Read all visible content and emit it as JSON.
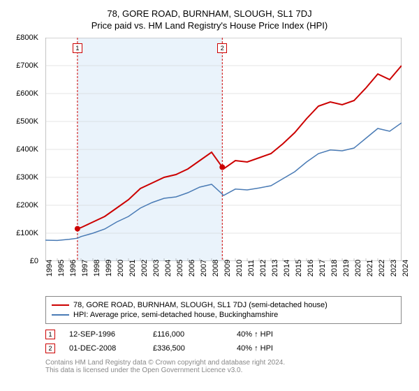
{
  "chart": {
    "title": "78, GORE ROAD, BURNHAM, SLOUGH, SL1 7DJ",
    "subtitle": "Price paid vs. HM Land Registry's House Price Index (HPI)",
    "type": "line",
    "background_color": "#ffffff",
    "highlight_band_color": "#eaf3fb",
    "grid_color": "#cccccc",
    "ylim": [
      0,
      800000
    ],
    "ytick_step": 100000,
    "y_tick_labels": [
      "£0",
      "£100K",
      "£200K",
      "£300K",
      "£400K",
      "£500K",
      "£600K",
      "£700K",
      "£800K"
    ],
    "xlim": [
      1994,
      2024
    ],
    "x_tick_labels": [
      "1994",
      "1995",
      "1996",
      "1997",
      "1998",
      "1999",
      "2000",
      "2001",
      "2002",
      "2003",
      "2004",
      "2005",
      "2006",
      "2007",
      "2008",
      "2009",
      "2010",
      "2011",
      "2012",
      "2013",
      "2014",
      "2015",
      "2016",
      "2017",
      "2018",
      "2019",
      "2020",
      "2021",
      "2022",
      "2023",
      "2024"
    ],
    "label_fontsize": 11,
    "highlight_band": {
      "start": 1996.7,
      "end": 2008.9
    },
    "series": [
      {
        "name": "property",
        "color": "#cc0000",
        "line_width": 2,
        "points": [
          [
            1996.7,
            116000
          ],
          [
            1997,
            120000
          ],
          [
            1998,
            140000
          ],
          [
            1999,
            160000
          ],
          [
            2000,
            190000
          ],
          [
            2001,
            220000
          ],
          [
            2002,
            260000
          ],
          [
            2003,
            280000
          ],
          [
            2004,
            300000
          ],
          [
            2005,
            310000
          ],
          [
            2006,
            330000
          ],
          [
            2007,
            360000
          ],
          [
            2008,
            390000
          ],
          [
            2008.9,
            336500
          ],
          [
            2009,
            330000
          ],
          [
            2010,
            360000
          ],
          [
            2011,
            355000
          ],
          [
            2012,
            370000
          ],
          [
            2013,
            385000
          ],
          [
            2014,
            420000
          ],
          [
            2015,
            460000
          ],
          [
            2016,
            510000
          ],
          [
            2017,
            555000
          ],
          [
            2018,
            570000
          ],
          [
            2019,
            560000
          ],
          [
            2020,
            575000
          ],
          [
            2021,
            620000
          ],
          [
            2022,
            670000
          ],
          [
            2023,
            650000
          ],
          [
            2024,
            700000
          ]
        ]
      },
      {
        "name": "hpi",
        "color": "#4a7bb5",
        "line_width": 1.5,
        "points": [
          [
            1994,
            75000
          ],
          [
            1995,
            74000
          ],
          [
            1996,
            78000
          ],
          [
            1996.7,
            82000
          ],
          [
            1997,
            88000
          ],
          [
            1998,
            100000
          ],
          [
            1999,
            115000
          ],
          [
            2000,
            140000
          ],
          [
            2001,
            160000
          ],
          [
            2002,
            190000
          ],
          [
            2003,
            210000
          ],
          [
            2004,
            225000
          ],
          [
            2005,
            230000
          ],
          [
            2006,
            245000
          ],
          [
            2007,
            265000
          ],
          [
            2008,
            275000
          ],
          [
            2008.9,
            240000
          ],
          [
            2009,
            235000
          ],
          [
            2010,
            258000
          ],
          [
            2011,
            255000
          ],
          [
            2012,
            262000
          ],
          [
            2013,
            270000
          ],
          [
            2014,
            295000
          ],
          [
            2015,
            320000
          ],
          [
            2016,
            355000
          ],
          [
            2017,
            385000
          ],
          [
            2018,
            398000
          ],
          [
            2019,
            395000
          ],
          [
            2020,
            405000
          ],
          [
            2021,
            440000
          ],
          [
            2022,
            475000
          ],
          [
            2023,
            465000
          ],
          [
            2024,
            495000
          ]
        ]
      }
    ],
    "sale_markers": [
      {
        "num": "1",
        "year": 1996.7,
        "value": 116000,
        "color": "#cc0000",
        "dot_color": "#cc0000"
      },
      {
        "num": "2",
        "year": 2008.9,
        "value": 336500,
        "color": "#cc0000",
        "dot_color": "#cc0000"
      }
    ]
  },
  "legend": {
    "items": [
      {
        "label": "78, GORE ROAD, BURNHAM, SLOUGH, SL1 7DJ (semi-detached house)",
        "color": "#cc0000"
      },
      {
        "label": "HPI: Average price, semi-detached house, Buckinghamshire",
        "color": "#4a7bb5"
      }
    ]
  },
  "sales": [
    {
      "num": "1",
      "color": "#cc0000",
      "date": "12-SEP-1996",
      "price": "£116,000",
      "hpi_rel": "40% ↑ HPI"
    },
    {
      "num": "2",
      "color": "#cc0000",
      "date": "01-DEC-2008",
      "price": "£336,500",
      "hpi_rel": "40% ↑ HPI"
    }
  ],
  "footer": {
    "line1": "Contains HM Land Registry data © Crown copyright and database right 2024.",
    "line2": "This data is licensed under the Open Government Licence v3.0."
  }
}
